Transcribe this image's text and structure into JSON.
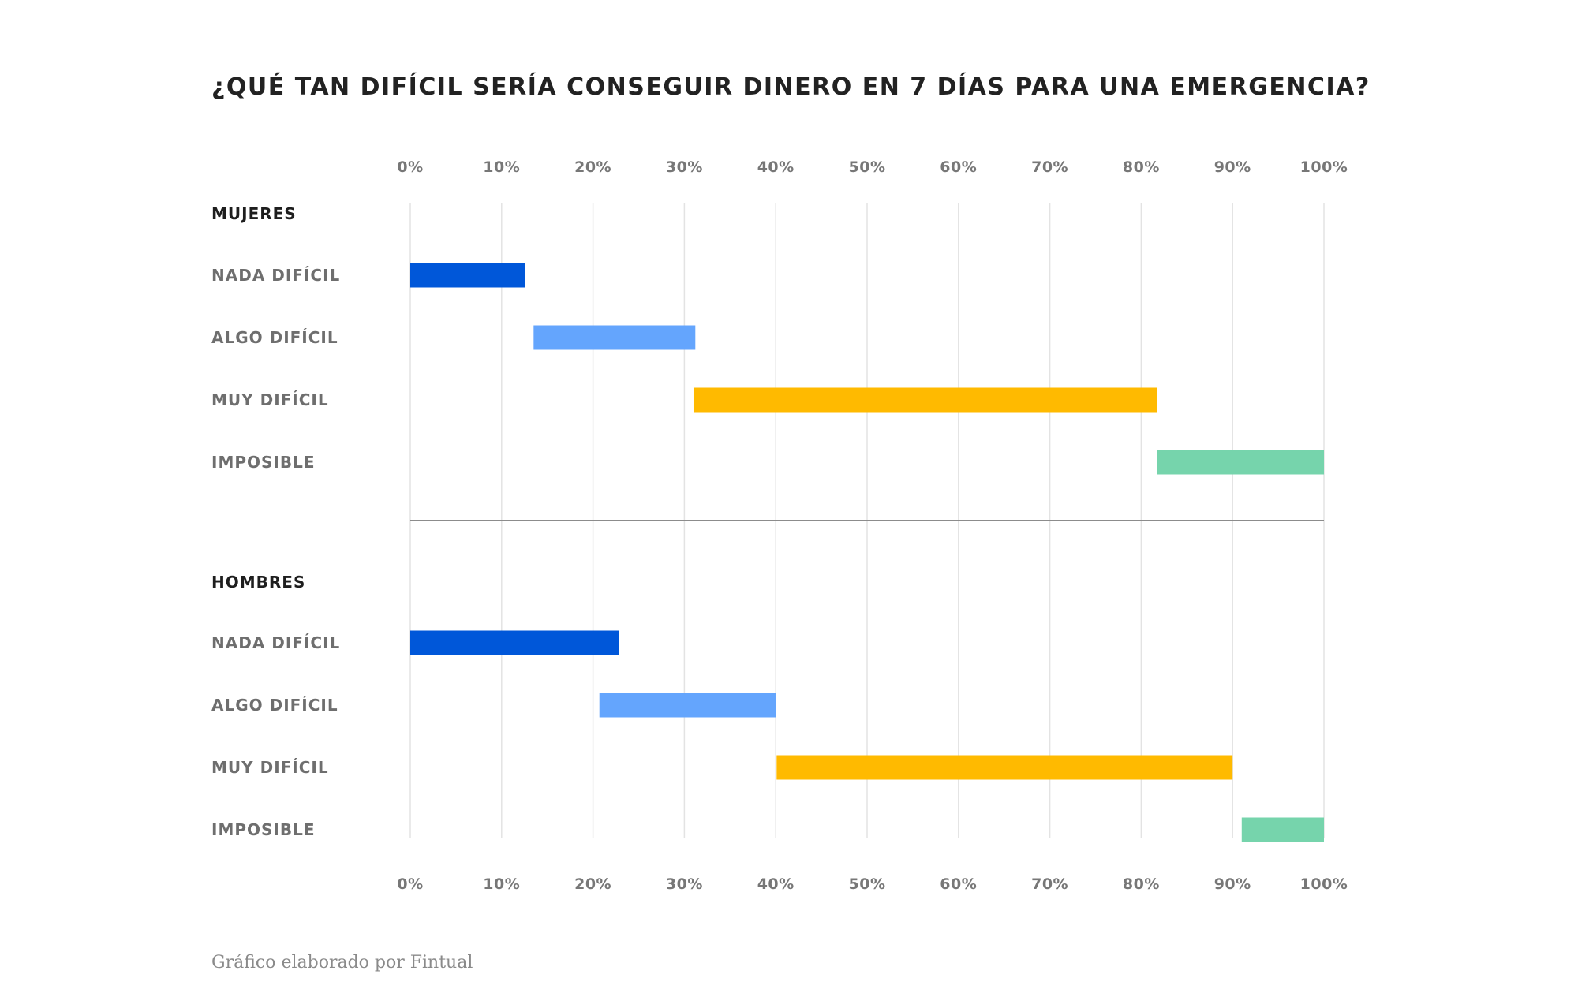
{
  "chart_data": {
    "type": "bar",
    "subtype": "floating-horizontal-bar",
    "title": "¿QUÉ TAN DIFÍCIL SERÍA CONSEGUIR DINERO EN 7 DÍAS PARA UNA EMERGENCIA?",
    "x_ticks": [
      "0%",
      "10%",
      "20%",
      "30%",
      "40%",
      "50%",
      "60%",
      "70%",
      "80%",
      "90%",
      "100%"
    ],
    "xlim": [
      0,
      100
    ],
    "grid": true,
    "colors": {
      "NADA DIFÍCIL": "#0057d9",
      "ALGO DIFÍCIL": "#64a5fd",
      "MUY DIFÍCIL": "#ffba00",
      "IMPOSIBLE": "#76d4ac"
    },
    "groups": [
      {
        "name": "MUJERES",
        "bars": [
          {
            "label": "NADA DIFÍCIL",
            "start": 0,
            "end": 12.6
          },
          {
            "label": "ALGO DIFÍCIL",
            "start": 13.5,
            "end": 31.2
          },
          {
            "label": "MUY DIFÍCIL",
            "start": 31.0,
            "end": 81.7
          },
          {
            "label": "IMPOSIBLE",
            "start": 81.7,
            "end": 100
          }
        ]
      },
      {
        "name": "HOMBRES",
        "bars": [
          {
            "label": "NADA DIFÍCIL",
            "start": 0,
            "end": 22.8
          },
          {
            "label": "ALGO DIFÍCIL",
            "start": 20.7,
            "end": 40.0
          },
          {
            "label": "MUY DIFÍCIL",
            "start": 40.1,
            "end": 90.0
          },
          {
            "label": "IMPOSIBLE",
            "start": 91.0,
            "end": 100
          }
        ]
      }
    ]
  },
  "footer": "Gráfico elaborado por Fintual"
}
